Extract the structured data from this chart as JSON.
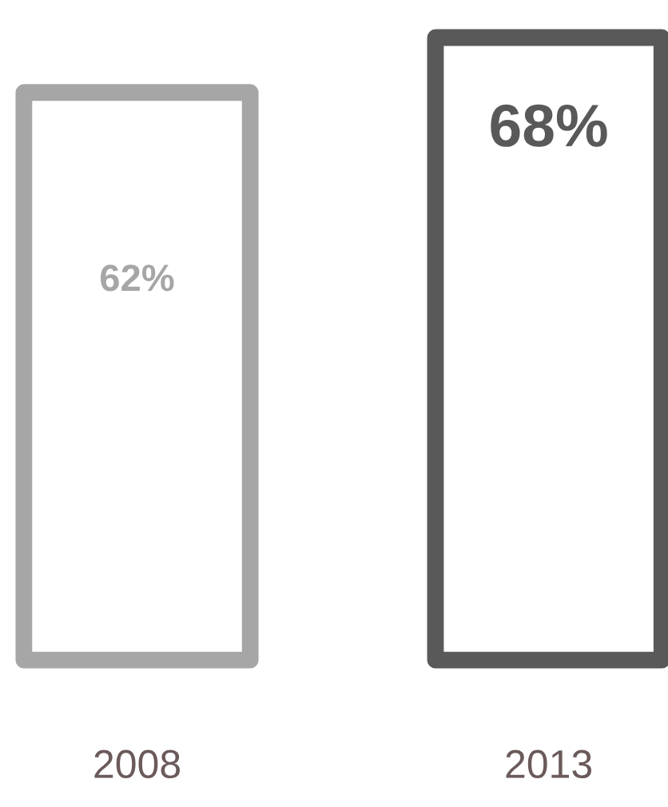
{
  "chart_data": {
    "type": "bar",
    "categories": [
      "2008",
      "2013"
    ],
    "values": [
      62,
      68
    ],
    "value_labels": [
      "62%",
      "68%"
    ],
    "colors": [
      "#a6a6a6",
      "#595959"
    ],
    "grid": false,
    "legend": false
  }
}
